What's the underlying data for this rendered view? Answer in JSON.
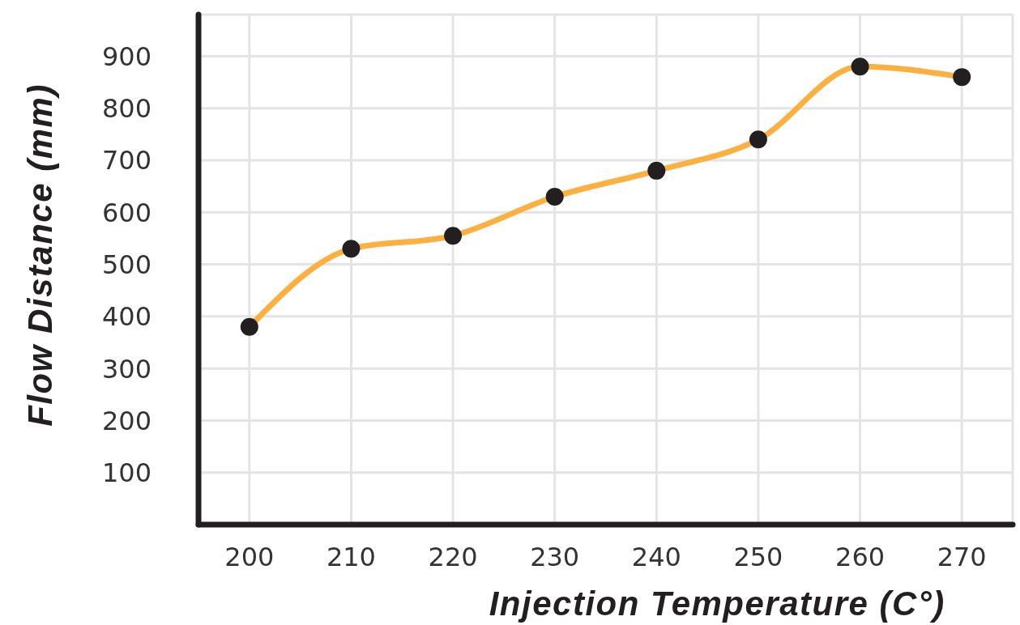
{
  "chart_data": {
    "type": "line",
    "xlabel": "Injection Temperature (C°)",
    "ylabel": "Flow Distance (mm)",
    "x": [
      200,
      210,
      220,
      230,
      240,
      250,
      260,
      270
    ],
    "series": [
      {
        "color": "#fbb040",
        "colors": [
          "#231f20",
          "#231f20",
          "#231f20",
          "#231f20",
          "#231f20",
          "#231f20",
          "#231f20",
          "#231f20"
        ],
        "values": [
          380,
          530,
          555,
          630,
          680,
          740,
          880,
          860
        ]
      }
    ],
    "xlim": [
      195,
      275
    ],
    "ylim": [
      0,
      980
    ],
    "xticks": [
      200,
      210,
      220,
      230,
      240,
      250,
      260,
      270
    ],
    "yticks": [
      100,
      200,
      300,
      400,
      500,
      600,
      700,
      800,
      900
    ],
    "grid": true,
    "marker": "circle",
    "line_style": "solid"
  }
}
